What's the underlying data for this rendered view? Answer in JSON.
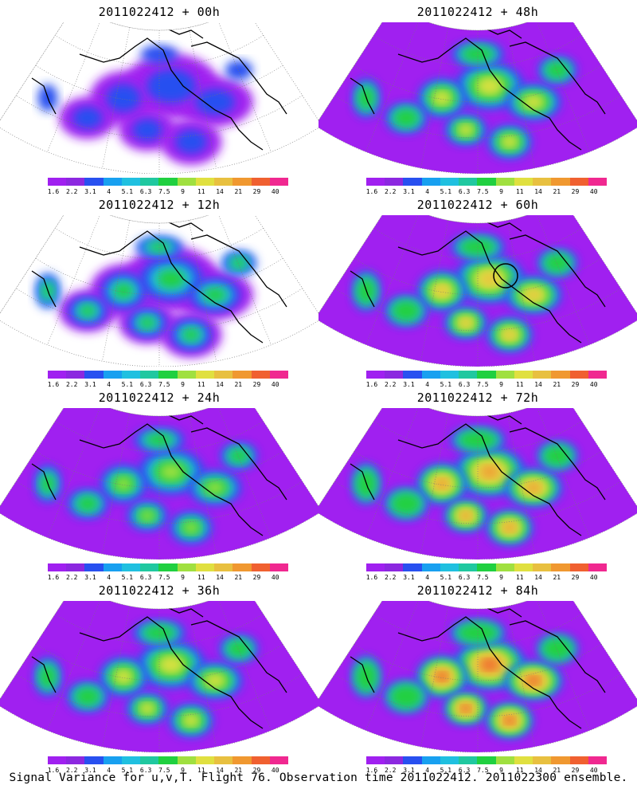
{
  "panels": [
    {
      "title": "2011022412 + 00h",
      "intensity": 0.25,
      "highlight_circle": false
    },
    {
      "title": "2011022412 + 12h",
      "intensity": 0.42,
      "highlight_circle": false
    },
    {
      "title": "2011022412 + 24h",
      "intensity": 0.55,
      "highlight_circle": false
    },
    {
      "title": "2011022412 + 36h",
      "intensity": 0.68,
      "highlight_circle": false
    },
    {
      "title": "2011022412 + 48h",
      "intensity": 0.72,
      "highlight_circle": false
    },
    {
      "title": "2011022412 + 60h",
      "intensity": 0.8,
      "highlight_circle": true
    },
    {
      "title": "2011022412 + 72h",
      "intensity": 0.88,
      "highlight_circle": false
    },
    {
      "title": "2011022412 + 84h",
      "intensity": 0.95,
      "highlight_circle": false
    }
  ],
  "colorbar": {
    "labels": [
      "1.6",
      "2.2",
      "3.1",
      "4",
      "5.1",
      "6.3",
      "7.5",
      "9",
      "11",
      "14",
      "21",
      "29",
      "40"
    ],
    "colors": [
      "#a020f0",
      "#8c28e0",
      "#2850f0",
      "#18a0f0",
      "#20c0e0",
      "#20c8a0",
      "#20d040",
      "#a0e040",
      "#e0e040",
      "#e8c040",
      "#f09830",
      "#f06030",
      "#f02890"
    ]
  },
  "caption": "Signal Variance for u,v,T. Flight 76. Observation time 2011022412. 2011022300 ensemble."
}
